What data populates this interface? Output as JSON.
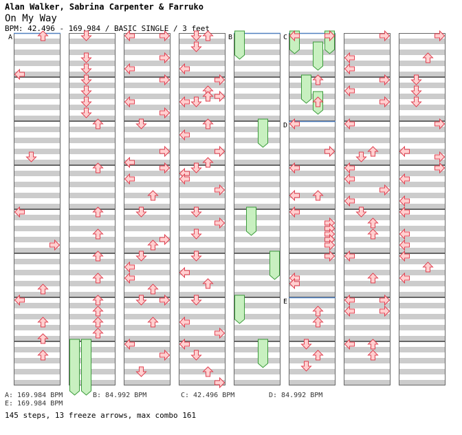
{
  "header": {
    "artist": "Alan Walker, Sabrina Carpenter & Farruko",
    "song": "On My Way",
    "info": "BPM: 42.496 - 169.984 / BASIC SINGLE / 3 feet"
  },
  "sections": [
    {
      "label": "A",
      "col": 0,
      "measure": 0
    },
    {
      "label": "B",
      "col": 4,
      "measure": 0
    },
    {
      "label": "C",
      "col": 5,
      "measure": 0
    },
    {
      "label": "D",
      "col": 5,
      "measure": 2
    },
    {
      "label": "E",
      "col": 5,
      "measure": 6
    }
  ],
  "bpm_legend": [
    {
      "text": "A: 169.984 BPM"
    },
    {
      "text": "B: 84.992 BPM"
    },
    {
      "text": "C: 42.496 BPM"
    },
    {
      "text": "D: 84.992 BPM"
    },
    {
      "text": "E: 169.984 BPM"
    }
  ],
  "stats": "145 steps, 13 freeze arrows, max combo 161",
  "colors": {
    "arrow_fill": "#ffd0d0",
    "arrow_stroke": "#e04050",
    "freeze_fill": "#c8f0c0",
    "freeze_stroke": "#3a9a3a",
    "stripe": "#cccccc",
    "section_line": "#5080c0"
  },
  "notes": [
    [
      0,
      0,
      0,
      2
    ],
    [
      0,
      0,
      7,
      0
    ],
    [
      0,
      2,
      6,
      1
    ],
    [
      0,
      3,
      14,
      3
    ],
    [
      0,
      4,
      0,
      0
    ],
    [
      0,
      4,
      14,
      2
    ],
    [
      0,
      5,
      12,
      2
    ],
    [
      0,
      6,
      0,
      0
    ],
    [
      0,
      6,
      7,
      2
    ],
    [
      0,
      7,
      2,
      2
    ],
    [
      1,
      0,
      0,
      1
    ],
    [
      1,
      0,
      4,
      1
    ],
    [
      1,
      0,
      6,
      1
    ],
    [
      1,
      1,
      0,
      1
    ],
    [
      1,
      1,
      2,
      1
    ],
    [
      1,
      1,
      4,
      1
    ],
    [
      1,
      1,
      6,
      1
    ],
    [
      1,
      2,
      0,
      2
    ],
    [
      1,
      3,
      0,
      2
    ],
    [
      1,
      4,
      0,
      2
    ],
    [
      1,
      4,
      4,
      2
    ],
    [
      1,
      5,
      0,
      2
    ],
    [
      1,
      5,
      4,
      2
    ],
    [
      1,
      6,
      0,
      2
    ],
    [
      1,
      6,
      2,
      2
    ],
    [
      1,
      6,
      4,
      2
    ],
    [
      1,
      6,
      6,
      2
    ],
    [
      2,
      0,
      0,
      0
    ],
    [
      2,
      0,
      0,
      3
    ],
    [
      2,
      0,
      4,
      3
    ],
    [
      2,
      0,
      6,
      0
    ],
    [
      2,
      1,
      0,
      3
    ],
    [
      2,
      1,
      4,
      0
    ],
    [
      2,
      1,
      6,
      3
    ],
    [
      2,
      2,
      0,
      1
    ],
    [
      2,
      2,
      5,
      3
    ],
    [
      2,
      2,
      7,
      0
    ],
    [
      2,
      3,
      0,
      3
    ],
    [
      2,
      3,
      2,
      0
    ],
    [
      2,
      3,
      5,
      2
    ],
    [
      2,
      4,
      0,
      1
    ],
    [
      2,
      4,
      5,
      3
    ],
    [
      2,
      4,
      6,
      2
    ],
    [
      2,
      5,
      0,
      1
    ],
    [
      2,
      5,
      2,
      0
    ],
    [
      2,
      5,
      4,
      0
    ],
    [
      2,
      5,
      6,
      2
    ],
    [
      2,
      6,
      0,
      1
    ],
    [
      2,
      6,
      0,
      3
    ],
    [
      2,
      6,
      4,
      2
    ],
    [
      2,
      7,
      0,
      0
    ],
    [
      2,
      7,
      2,
      3
    ],
    [
      2,
      7,
      5,
      1
    ],
    [
      3,
      0,
      0,
      1
    ],
    [
      3,
      0,
      0,
      2
    ],
    [
      3,
      0,
      2,
      1
    ],
    [
      3,
      0,
      6,
      0
    ],
    [
      3,
      1,
      0,
      3
    ],
    [
      3,
      1,
      2,
      2
    ],
    [
      3,
      1,
      3,
      2
    ],
    [
      3,
      1,
      3,
      3
    ],
    [
      3,
      1,
      4,
      1
    ],
    [
      3,
      1,
      4,
      0
    ],
    [
      3,
      2,
      0,
      2
    ],
    [
      3,
      2,
      2,
      0
    ],
    [
      3,
      2,
      5,
      3
    ],
    [
      3,
      2,
      7,
      2
    ],
    [
      3,
      3,
      0,
      1
    ],
    [
      3,
      3,
      1,
      0
    ],
    [
      3,
      3,
      2,
      0
    ],
    [
      3,
      3,
      4,
      3
    ],
    [
      3,
      4,
      0,
      1
    ],
    [
      3,
      4,
      2,
      3
    ],
    [
      3,
      4,
      4,
      1
    ],
    [
      3,
      5,
      0,
      1
    ],
    [
      3,
      5,
      3,
      0
    ],
    [
      3,
      5,
      5,
      2
    ],
    [
      3,
      6,
      0,
      1
    ],
    [
      3,
      6,
      4,
      0
    ],
    [
      3,
      6,
      6,
      3
    ],
    [
      3,
      7,
      0,
      0
    ],
    [
      3,
      7,
      2,
      1
    ],
    [
      3,
      7,
      5,
      2
    ],
    [
      3,
      7,
      7,
      3
    ],
    [
      5,
      0,
      0,
      0
    ],
    [
      5,
      0,
      0,
      3
    ],
    [
      5,
      1,
      0,
      2
    ],
    [
      5,
      1,
      4,
      2
    ],
    [
      5,
      2,
      0,
      0
    ],
    [
      5,
      2,
      5,
      3
    ],
    [
      5,
      3,
      0,
      0
    ],
    [
      5,
      3,
      5,
      0
    ],
    [
      5,
      3,
      5,
      2
    ],
    [
      5,
      4,
      0,
      0
    ],
    [
      5,
      4,
      2,
      3
    ],
    [
      5,
      4,
      3,
      3
    ],
    [
      5,
      4,
      4,
      3
    ],
    [
      5,
      4,
      5,
      3
    ],
    [
      5,
      4,
      6,
      3
    ],
    [
      5,
      5,
      0,
      3
    ],
    [
      5,
      5,
      4,
      0
    ],
    [
      5,
      5,
      5,
      0
    ],
    [
      5,
      6,
      2,
      2
    ],
    [
      5,
      6,
      4,
      2
    ],
    [
      5,
      7,
      0,
      1
    ],
    [
      5,
      7,
      2,
      2
    ],
    [
      5,
      7,
      4,
      1
    ],
    [
      6,
      0,
      0,
      3
    ],
    [
      6,
      0,
      4,
      0
    ],
    [
      6,
      0,
      6,
      0
    ],
    [
      6,
      1,
      0,
      3
    ],
    [
      6,
      1,
      2,
      0
    ],
    [
      6,
      1,
      4,
      3
    ],
    [
      6,
      2,
      0,
      0
    ],
    [
      6,
      2,
      5,
      2
    ],
    [
      6,
      2,
      6,
      1
    ],
    [
      6,
      3,
      0,
      0
    ],
    [
      6,
      3,
      2,
      0
    ],
    [
      6,
      3,
      4,
      3
    ],
    [
      6,
      3,
      6,
      0
    ],
    [
      6,
      4,
      0,
      1
    ],
    [
      6,
      4,
      2,
      2
    ],
    [
      6,
      4,
      4,
      2
    ],
    [
      6,
      5,
      0,
      0
    ],
    [
      6,
      5,
      4,
      2
    ],
    [
      6,
      6,
      0,
      0
    ],
    [
      6,
      6,
      0,
      3
    ],
    [
      6,
      6,
      2,
      0
    ],
    [
      6,
      6,
      2,
      3
    ],
    [
      6,
      7,
      0,
      0
    ],
    [
      6,
      7,
      0,
      2
    ],
    [
      6,
      7,
      2,
      2
    ],
    [
      7,
      0,
      0,
      3
    ],
    [
      7,
      0,
      4,
      2
    ],
    [
      7,
      1,
      0,
      1
    ],
    [
      7,
      1,
      2,
      1
    ],
    [
      7,
      1,
      4,
      1
    ],
    [
      7,
      2,
      0,
      3
    ],
    [
      7,
      2,
      5,
      0
    ],
    [
      7,
      2,
      6,
      3
    ],
    [
      7,
      3,
      0,
      3
    ],
    [
      7,
      3,
      2,
      0
    ],
    [
      7,
      3,
      6,
      0
    ],
    [
      7,
      4,
      0,
      0
    ],
    [
      7,
      4,
      4,
      0
    ],
    [
      7,
      4,
      6,
      0
    ],
    [
      7,
      5,
      0,
      0
    ],
    [
      7,
      5,
      2,
      2
    ],
    [
      7,
      5,
      4,
      0
    ]
  ],
  "freezes": [
    [
      1,
      7,
      0,
      0,
      8,
      1
    ],
    [
      1,
      7,
      0,
      1,
      8,
      2
    ],
    [
      4,
      0,
      0,
      0,
      3,
      0
    ],
    [
      4,
      2,
      0,
      2,
      3,
      2
    ],
    [
      4,
      4,
      0,
      1,
      3,
      1
    ],
    [
      4,
      5,
      0,
      3,
      3,
      3
    ],
    [
      4,
      6,
      0,
      0,
      3,
      0
    ],
    [
      4,
      7,
      0,
      2,
      3,
      2
    ],
    [
      5,
      0,
      0,
      0,
      2,
      0
    ],
    [
      5,
      0,
      0,
      3,
      2,
      3
    ],
    [
      5,
      0,
      2,
      2,
      5,
      2
    ],
    [
      5,
      1,
      0,
      1,
      3,
      1
    ],
    [
      5,
      1,
      3,
      2,
      5,
      2
    ]
  ]
}
